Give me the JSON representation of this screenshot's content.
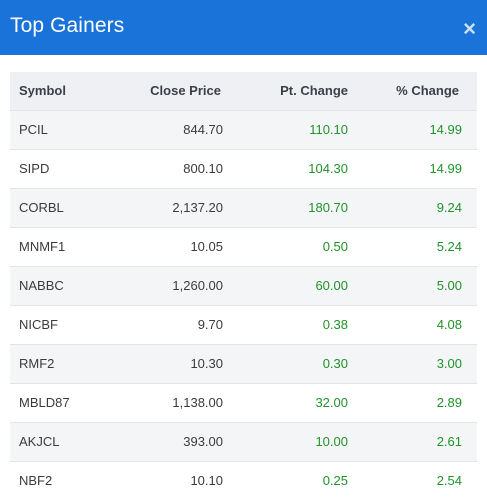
{
  "dialog": {
    "title": "Top Gainers",
    "close_label": "×"
  },
  "colors": {
    "header_bg": "#1a73d9",
    "positive": "#21922a"
  },
  "table": {
    "columns": [
      "Symbol",
      "Close Price",
      "Pt. Change",
      "% Change"
    ],
    "rows": [
      {
        "symbol": "PCIL",
        "close": "844.70",
        "pt_change": "110.10",
        "pct_change": "14.99"
      },
      {
        "symbol": "SIPD",
        "close": "800.10",
        "pt_change": "104.30",
        "pct_change": "14.99"
      },
      {
        "symbol": "CORBL",
        "close": "2,137.20",
        "pt_change": "180.70",
        "pct_change": "9.24"
      },
      {
        "symbol": "MNMF1",
        "close": "10.05",
        "pt_change": "0.50",
        "pct_change": "5.24"
      },
      {
        "symbol": "NABBC",
        "close": "1,260.00",
        "pt_change": "60.00",
        "pct_change": "5.00"
      },
      {
        "symbol": "NICBF",
        "close": "9.70",
        "pt_change": "0.38",
        "pct_change": "4.08"
      },
      {
        "symbol": "RMF2",
        "close": "10.30",
        "pt_change": "0.30",
        "pct_change": "3.00"
      },
      {
        "symbol": "MBLD87",
        "close": "1,138.00",
        "pt_change": "32.00",
        "pct_change": "2.89"
      },
      {
        "symbol": "AKJCL",
        "close": "393.00",
        "pt_change": "10.00",
        "pct_change": "2.61"
      },
      {
        "symbol": "NBF2",
        "close": "10.10",
        "pt_change": "0.25",
        "pct_change": "2.54"
      }
    ]
  }
}
